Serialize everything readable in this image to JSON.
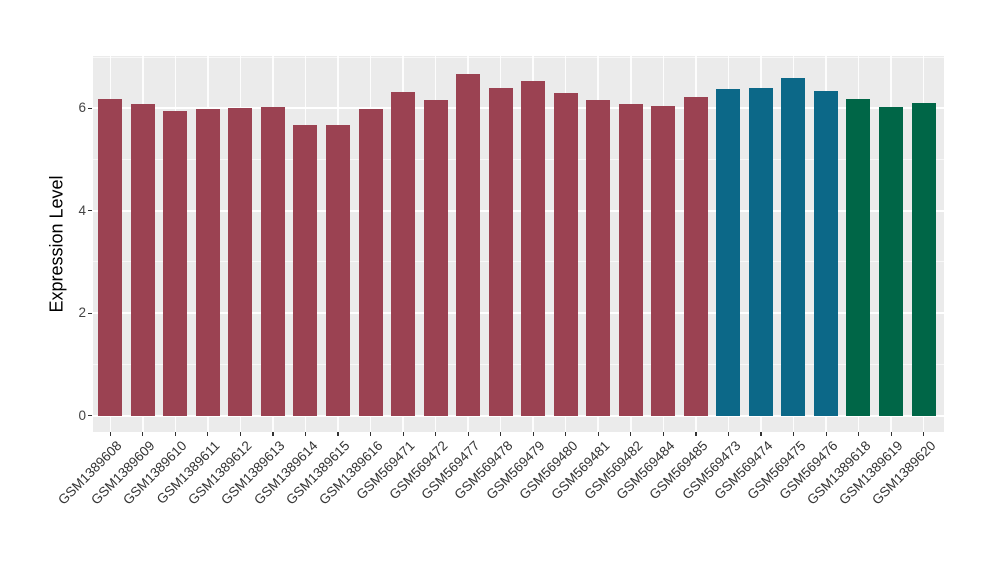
{
  "chart_data": {
    "type": "bar",
    "title": "",
    "xlabel": "",
    "ylabel": "Expression Level",
    "ylim": [
      0,
      7.0
    ],
    "yticks_major": [
      0,
      2,
      4,
      6
    ],
    "yticks_minor": [
      1,
      3,
      5,
      7
    ],
    "ytick_labels": [
      "0",
      "2",
      "4",
      "6"
    ],
    "grid": "white major and minor horizontal lines plus white vertical line per category on grey panel",
    "legend_position": "none",
    "panel_background": "#EBEBEB",
    "categories": [
      "GSM1389608",
      "GSM1389609",
      "GSM1389610",
      "GSM1389611",
      "GSM1389612",
      "GSM1389613",
      "GSM1389614",
      "GSM1389615",
      "GSM1389616",
      "GSM569471",
      "GSM569472",
      "GSM569477",
      "GSM569478",
      "GSM569479",
      "GSM569480",
      "GSM569481",
      "GSM569482",
      "GSM569484",
      "GSM569485",
      "GSM569473",
      "GSM569474",
      "GSM569475",
      "GSM569476",
      "GSM1389618",
      "GSM1389619",
      "GSM1389620"
    ],
    "values": [
      6.18,
      6.08,
      5.94,
      5.99,
      6.01,
      6.03,
      5.67,
      5.67,
      5.98,
      6.31,
      6.17,
      6.67,
      6.39,
      6.53,
      6.29,
      6.16,
      6.08,
      6.05,
      6.23,
      6.37,
      6.4,
      6.59,
      6.34,
      6.18,
      6.03,
      6.11
    ],
    "bar_groups": [
      "maroon",
      "maroon",
      "maroon",
      "maroon",
      "maroon",
      "maroon",
      "maroon",
      "maroon",
      "maroon",
      "maroon",
      "maroon",
      "maroon",
      "maroon",
      "maroon",
      "maroon",
      "maroon",
      "maroon",
      "maroon",
      "maroon",
      "blue",
      "blue",
      "blue",
      "blue",
      "green",
      "green",
      "green"
    ],
    "group_colors": {
      "maroon": "#9B4252",
      "blue": "#0C6888",
      "green": "#006647"
    }
  }
}
